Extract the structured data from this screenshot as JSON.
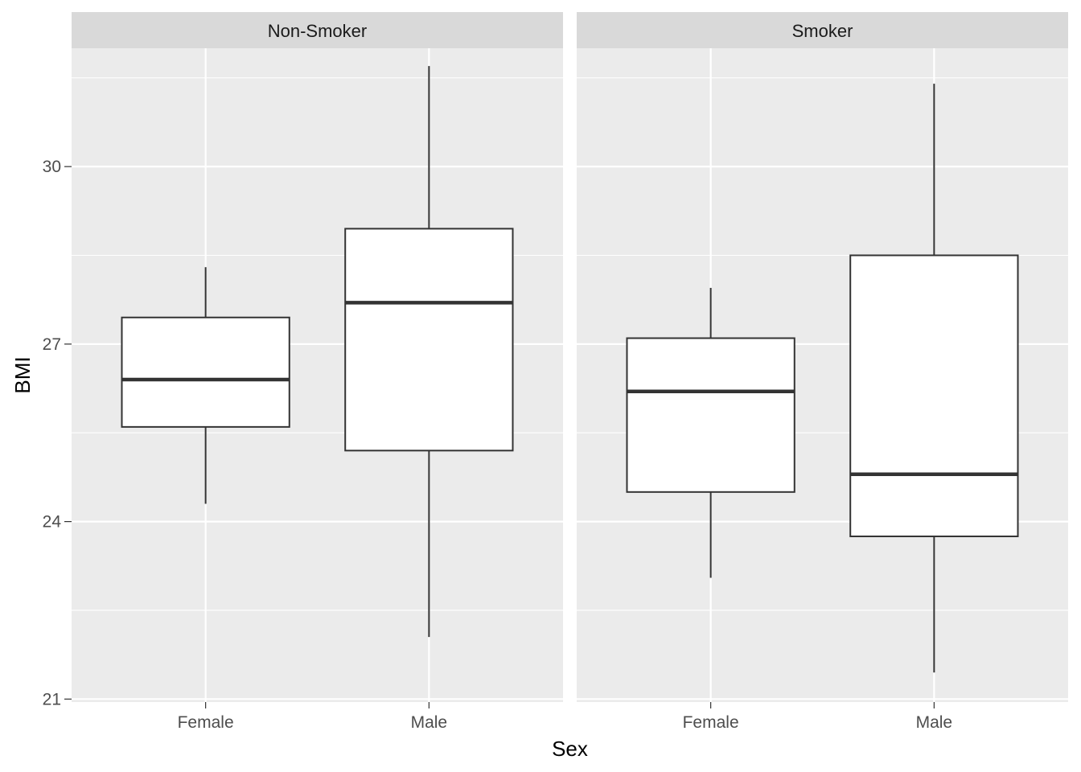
{
  "chart_data": {
    "type": "boxplot",
    "xlabel": "Sex",
    "ylabel": "BMI",
    "ylim": [
      20.95,
      32.0
    ],
    "yticks": [
      21,
      24,
      27,
      30
    ],
    "yticks_labels": [
      "21",
      "24",
      "27",
      "30"
    ],
    "grid": true,
    "categories": [
      "Female",
      "Male"
    ],
    "facets": [
      {
        "label": "Non-Smoker",
        "boxes": [
          {
            "category": "Female",
            "whisker_low": 24.3,
            "q1": 25.6,
            "median": 26.4,
            "q3": 27.45,
            "whisker_high": 28.3
          },
          {
            "category": "Male",
            "whisker_low": 22.05,
            "q1": 25.2,
            "median": 27.7,
            "q3": 28.95,
            "whisker_high": 31.7
          }
        ]
      },
      {
        "label": "Smoker",
        "boxes": [
          {
            "category": "Female",
            "whisker_low": 23.05,
            "q1": 24.5,
            "median": 26.2,
            "q3": 27.1,
            "whisker_high": 27.95
          },
          {
            "category": "Male",
            "whisker_low": 21.45,
            "q1": 23.75,
            "median": 24.8,
            "q3": 28.5,
            "whisker_high": 31.4
          }
        ]
      }
    ],
    "colors": {
      "panel_bg": "#ebebeb",
      "strip_bg": "#d9d9d9",
      "grid": "#ffffff",
      "box_fill": "#ffffff",
      "box_line": "#333333"
    }
  }
}
